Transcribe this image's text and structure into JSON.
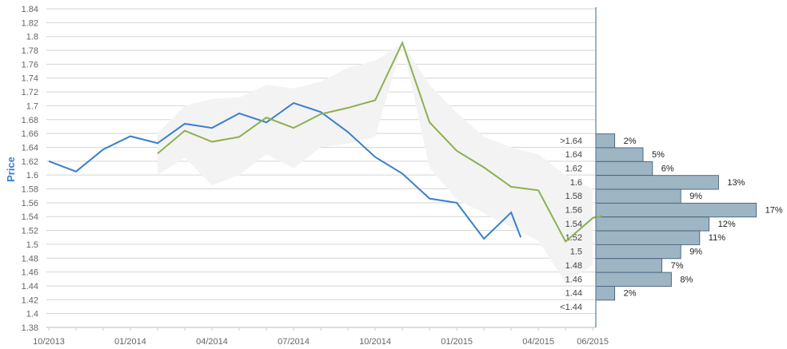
{
  "chart_data": {
    "type": "line",
    "ylabel": "Price",
    "ylim": [
      1.38,
      1.84
    ],
    "y_ticks": [
      "1.38",
      "1.4",
      "1.42",
      "1.44",
      "1.46",
      "1.48",
      "1.5",
      "1.52",
      "1.54",
      "1.56",
      "1.58",
      "1.6",
      "1.62",
      "1.64",
      "1.66",
      "1.68",
      "1.7",
      "1.72",
      "1.74",
      "1.76",
      "1.78",
      "1.8",
      "1.82",
      "1.84"
    ],
    "x_tick_labels": [
      "10/2013",
      "01/2014",
      "04/2014",
      "07/2014",
      "10/2014",
      "01/2015",
      "04/2015",
      "06/2015"
    ],
    "x_month_range": [
      "10/2013",
      "06/2015"
    ],
    "series": [
      {
        "color": "#3a7fc9",
        "points": [
          {
            "x": "10/2013",
            "y": 1.62
          },
          {
            "x": "11/2013",
            "y": 1.605
          },
          {
            "x": "12/2013",
            "y": 1.637
          },
          {
            "x": "01/2014",
            "y": 1.656
          },
          {
            "x": "02/2014",
            "y": 1.646
          },
          {
            "x": "03/2014",
            "y": 1.674
          },
          {
            "x": "04/2014",
            "y": 1.668
          },
          {
            "x": "05/2014",
            "y": 1.689
          },
          {
            "x": "06/2014",
            "y": 1.676
          },
          {
            "x": "07/2014",
            "y": 1.704
          },
          {
            "x": "08/2014",
            "y": 1.691
          },
          {
            "x": "09/2014",
            "y": 1.662
          },
          {
            "x": "10/2014",
            "y": 1.626
          },
          {
            "x": "11/2014",
            "y": 1.602
          },
          {
            "x": "12/2014",
            "y": 1.566
          },
          {
            "x": "01/2015",
            "y": 1.56
          },
          {
            "x": "02/2015",
            "y": 1.508
          },
          {
            "x": "03/2015",
            "y": 1.546
          },
          {
            "x": "03/2015",
            "y": 1.51
          }
        ]
      },
      {
        "color": "#8cb050",
        "points": [
          {
            "x": "02/2014",
            "y": 1.631
          },
          {
            "x": "03/2014",
            "y": 1.664
          },
          {
            "x": "04/2014",
            "y": 1.648
          },
          {
            "x": "05/2014",
            "y": 1.655
          },
          {
            "x": "06/2014",
            "y": 1.683
          },
          {
            "x": "07/2014",
            "y": 1.668
          },
          {
            "x": "08/2014",
            "y": 1.688
          },
          {
            "x": "09/2014",
            "y": 1.697
          },
          {
            "x": "10/2014",
            "y": 1.708
          },
          {
            "x": "11/2014",
            "y": 1.791
          },
          {
            "x": "12/2014",
            "y": 1.676
          },
          {
            "x": "01/2015",
            "y": 1.635
          },
          {
            "x": "02/2015",
            "y": 1.611
          },
          {
            "x": "03/2015",
            "y": 1.583
          },
          {
            "x": "04/2015",
            "y": 1.578
          },
          {
            "x": "05/2015",
            "y": 1.504
          },
          {
            "x": "06/2015",
            "y": 1.538
          },
          {
            "x": "06/2015",
            "y": 1.541
          }
        ]
      }
    ],
    "band": {
      "color": "#f3f3f3",
      "upper": [
        {
          "x": "02/2014",
          "y": 1.66
        },
        {
          "x": "03/2014",
          "y": 1.7
        },
        {
          "x": "04/2014",
          "y": 1.71
        },
        {
          "x": "05/2014",
          "y": 1.712
        },
        {
          "x": "06/2014",
          "y": 1.73
        },
        {
          "x": "07/2014",
          "y": 1.725
        },
        {
          "x": "08/2014",
          "y": 1.735
        },
        {
          "x": "09/2014",
          "y": 1.755
        },
        {
          "x": "10/2014",
          "y": 1.765
        },
        {
          "x": "11/2014",
          "y": 1.79
        },
        {
          "x": "12/2014",
          "y": 1.73
        },
        {
          "x": "01/2015",
          "y": 1.69
        },
        {
          "x": "02/2015",
          "y": 1.655
        },
        {
          "x": "03/2015",
          "y": 1.64
        },
        {
          "x": "04/2015",
          "y": 1.63
        },
        {
          "x": "05/2015",
          "y": 1.6
        },
        {
          "x": "06/2015",
          "y": 1.58
        }
      ],
      "lower": [
        {
          "x": "02/2014",
          "y": 1.6
        },
        {
          "x": "03/2014",
          "y": 1.625
        },
        {
          "x": "04/2014",
          "y": 1.585
        },
        {
          "x": "05/2014",
          "y": 1.6
        },
        {
          "x": "06/2014",
          "y": 1.63
        },
        {
          "x": "07/2014",
          "y": 1.61
        },
        {
          "x": "08/2014",
          "y": 1.64
        },
        {
          "x": "09/2014",
          "y": 1.645
        },
        {
          "x": "10/2014",
          "y": 1.655
        },
        {
          "x": "11/2014",
          "y": 1.79
        },
        {
          "x": "12/2014",
          "y": 1.61
        },
        {
          "x": "01/2015",
          "y": 1.565
        },
        {
          "x": "02/2015",
          "y": 1.545
        },
        {
          "x": "03/2015",
          "y": 1.525
        },
        {
          "x": "04/2015",
          "y": 1.505
        },
        {
          "x": "05/2015",
          "y": 1.445
        },
        {
          "x": "06/2015",
          "y": 1.47
        }
      ]
    },
    "histogram": {
      "color": "#9eb5c4",
      "bins": [
        {
          "label": ">1.64",
          "pct": 2,
          "label_text": "2%"
        },
        {
          "label": "1.64",
          "pct": 5,
          "label_text": "5%"
        },
        {
          "label": "1.62",
          "pct": 6,
          "label_text": "6%"
        },
        {
          "label": "1.6",
          "pct": 13,
          "label_text": "13%"
        },
        {
          "label": "1.58",
          "pct": 9,
          "label_text": "9%"
        },
        {
          "label": "1.56",
          "pct": 17,
          "label_text": "17%"
        },
        {
          "label": "1.54",
          "pct": 12,
          "label_text": "12%"
        },
        {
          "label": "1.52",
          "pct": 11,
          "label_text": "11%"
        },
        {
          "label": "1.5",
          "pct": 9,
          "label_text": "9%"
        },
        {
          "label": "1.48",
          "pct": 7,
          "label_text": "7%"
        },
        {
          "label": "1.46",
          "pct": 8,
          "label_text": "8%"
        },
        {
          "label": "1.44",
          "pct": 2,
          "label_text": "2%"
        },
        {
          "label": "<1.44",
          "pct": null,
          "label_text": ""
        }
      ]
    }
  }
}
